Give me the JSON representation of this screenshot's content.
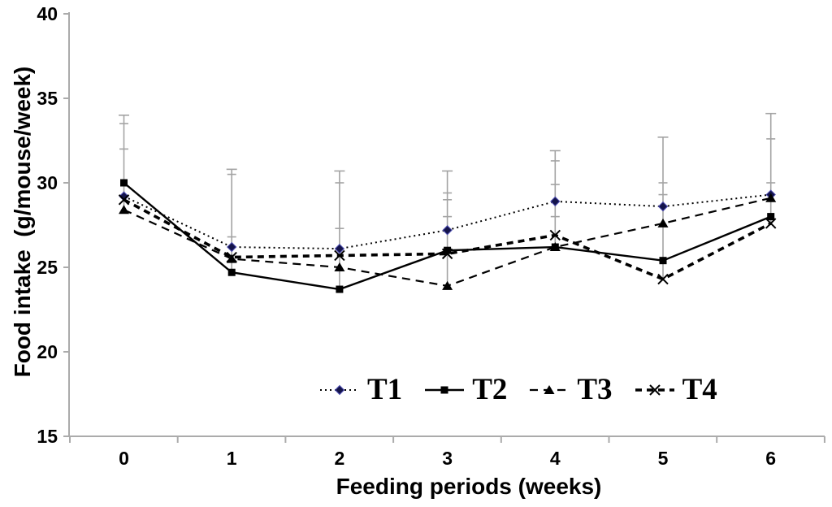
{
  "chart_data": {
    "type": "line",
    "title": "",
    "xlabel": "Feeding periods (weeks)",
    "ylabel": "Food intake  (g/mouse/week)",
    "x": [
      0,
      1,
      2,
      3,
      4,
      5,
      6
    ],
    "ylim": [
      15,
      40
    ],
    "yticks": [
      15,
      20,
      25,
      30,
      35,
      40
    ],
    "grid": false,
    "legend_position": "bottom-center-inside",
    "axis_color": "#ababab",
    "error_bar_color": "#a3a3a3",
    "series": [
      {
        "name": "T1",
        "marker": "diamond",
        "marker_color": "#14144b",
        "line": "dotted",
        "color": "#000000",
        "values": [
          29.2,
          26.2,
          26.1,
          27.2,
          28.9,
          28.6,
          29.3
        ]
      },
      {
        "name": "T2",
        "marker": "square",
        "marker_color": "#000000",
        "line": "solid",
        "color": "#000000",
        "values": [
          30.0,
          24.7,
          23.7,
          26.0,
          26.2,
          25.4,
          28.0
        ]
      },
      {
        "name": "T3",
        "marker": "triangle",
        "marker_color": "#000000",
        "line": "dashed",
        "color": "#000000",
        "values": [
          28.4,
          25.5,
          25.0,
          23.9,
          26.2,
          27.6,
          29.1
        ]
      },
      {
        "name": "T4",
        "marker": "x",
        "marker_color": "#000000",
        "line": "bold-dashed",
        "color": "#000000",
        "values": [
          29.0,
          25.6,
          25.7,
          25.8,
          26.9,
          24.3,
          27.6
        ]
      }
    ],
    "error_bars_upper_cap_values_per_week": [
      [
        34.0,
        33.5,
        32.0
      ],
      [
        30.8,
        30.5,
        26.8
      ],
      [
        30.7,
        30.0,
        27.3
      ],
      [
        30.7,
        29.4,
        29.0,
        28.0
      ],
      [
        31.9,
        31.3,
        29.9,
        28.0
      ],
      [
        32.7,
        30.0,
        29.3
      ],
      [
        34.1,
        32.6,
        30.0
      ]
    ]
  }
}
